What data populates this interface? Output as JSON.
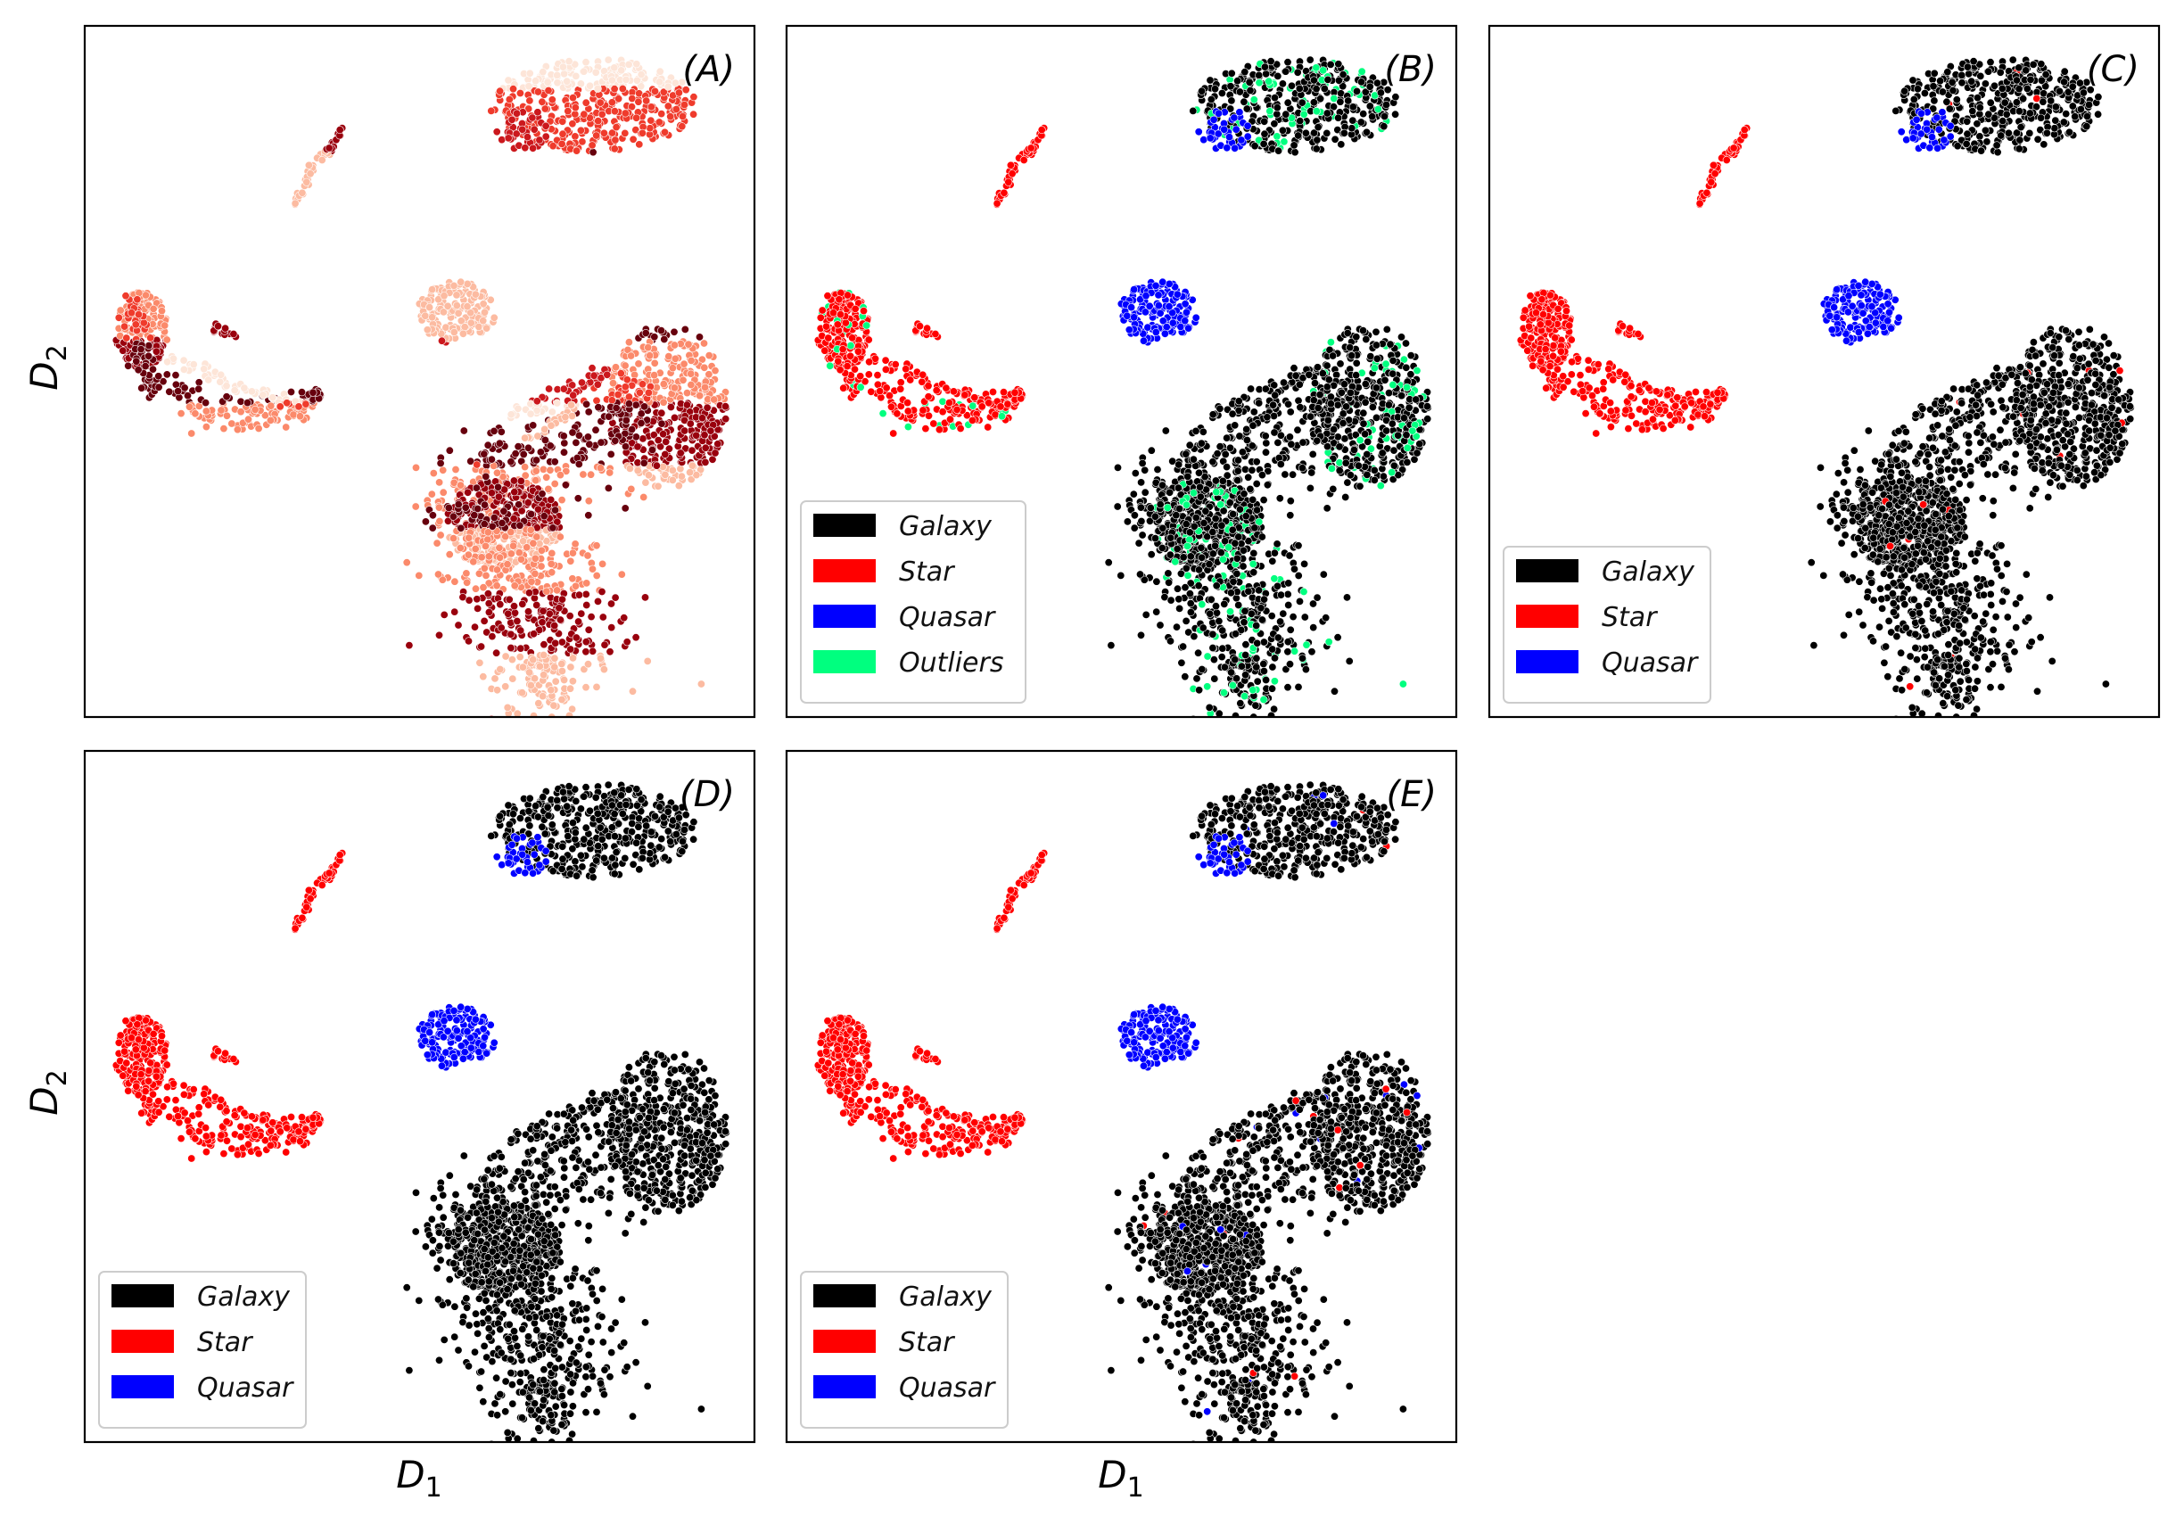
{
  "figure": {
    "xlabel": "D",
    "xlabel_sub": "1",
    "ylabel": "D",
    "ylabel_sub": "2"
  },
  "colors": {
    "galaxy": "#000000",
    "star": "#ff0000",
    "quasar": "#0000ff",
    "outliers": "#00ff7f",
    "cluster_palette": [
      "#fde5d8",
      "#fcbba1",
      "#fb8a6b",
      "#ef3b2c",
      "#cb181d",
      "#99000d",
      "#67000d"
    ]
  },
  "chart_data": [
    {
      "type": "scatter",
      "panel": "(A)",
      "coloring": "cluster",
      "legend": [],
      "grid": false
    },
    {
      "type": "scatter",
      "panel": "(B)",
      "coloring": "class_with_outliers",
      "legend": [
        "Galaxy",
        "Star",
        "Quasar",
        "Outliers"
      ],
      "legend_position": "lower-left",
      "grid": false
    },
    {
      "type": "scatter",
      "panel": "(C)",
      "coloring": "class",
      "legend": [
        "Galaxy",
        "Star",
        "Quasar"
      ],
      "legend_position": "lower-left",
      "grid": false
    },
    {
      "type": "scatter",
      "panel": "(D)",
      "coloring": "class",
      "legend": [
        "Galaxy",
        "Star",
        "Quasar"
      ],
      "legend_position": "lower-left",
      "grid": false
    },
    {
      "type": "scatter",
      "panel": "(E)",
      "coloring": "class",
      "legend": [
        "Galaxy",
        "Star",
        "Quasar"
      ],
      "legend_position": "lower-left",
      "grid": false
    }
  ]
}
